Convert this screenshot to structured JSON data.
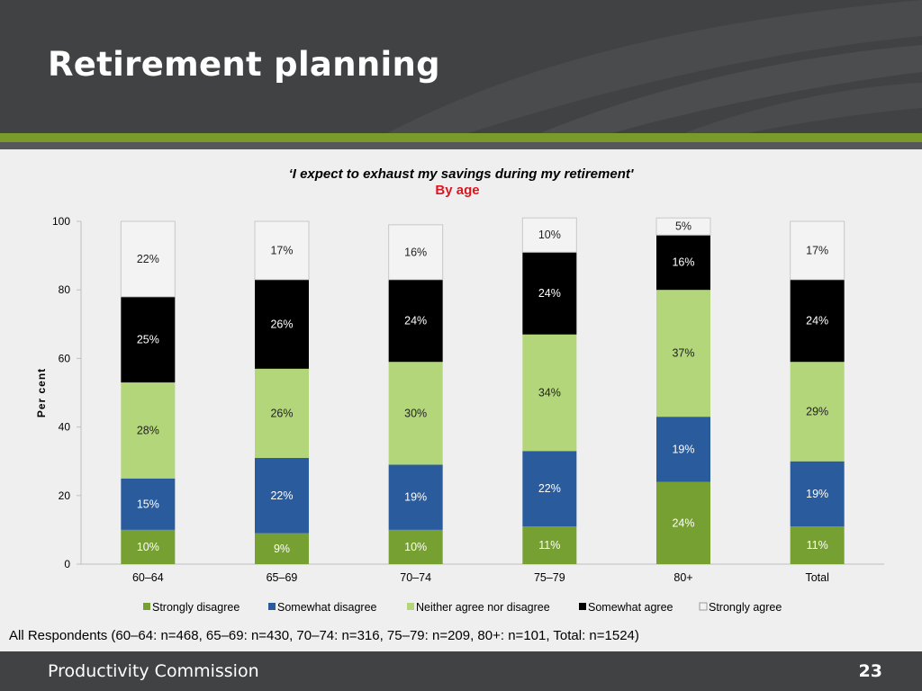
{
  "slide": {
    "title": "Retirement planning",
    "footer_org": "Productivity Commission",
    "page_number": "23",
    "respondents_note": "All Respondents (60–64: n=468, 65–69: n=430, 70–74: n=316, 75–79: n=209, 80+: n=101, Total: n=1524)"
  },
  "chart_data": {
    "type": "bar",
    "stacked": true,
    "title": "‘I expect to exhaust my savings during my retirement'",
    "subtitle": "By age",
    "ylabel": "Per cent",
    "ylim": [
      0,
      100
    ],
    "yticks": [
      0,
      20,
      40,
      60,
      80,
      100
    ],
    "grid": false,
    "legend_position": "bottom",
    "categories": [
      "60–64",
      "65–69",
      "70–74",
      "75–79",
      "80+",
      "Total"
    ],
    "series": [
      {
        "name": "Strongly disagree",
        "color": "#77a033",
        "label_color": "#ffffff",
        "values": [
          10,
          9,
          10,
          11,
          24,
          11
        ],
        "labels": [
          "10%",
          "9%",
          "10%",
          "11%",
          "24%",
          "11%"
        ]
      },
      {
        "name": "Somewhat disagree",
        "color": "#2a5b9c",
        "label_color": "#ffffff",
        "values": [
          15,
          22,
          19,
          22,
          19,
          19
        ],
        "labels": [
          "15%",
          "22%",
          "19%",
          "22%",
          "19%",
          "19%"
        ]
      },
      {
        "name": "Neither agree nor disagree",
        "color": "#b3d67a",
        "label_color": "#222222",
        "values": [
          28,
          26,
          30,
          34,
          37,
          29
        ],
        "labels": [
          "28%",
          "26%",
          "30%",
          "34%",
          "37%",
          "29%"
        ]
      },
      {
        "name": "Somewhat agree",
        "color": "#000000",
        "label_color": "#ffffff",
        "values": [
          25,
          26,
          24,
          24,
          16,
          24
        ],
        "labels": [
          "25%",
          "26%",
          "24%",
          "24%",
          "16%",
          "24%"
        ]
      },
      {
        "name": "Strongly agree",
        "color": "#f3f3f3",
        "label_color": "#222222",
        "values": [
          22,
          17,
          16,
          10,
          5,
          17
        ],
        "labels": [
          "22%",
          "17%",
          "16%",
          "10%",
          "5%",
          "17%"
        ]
      }
    ]
  }
}
